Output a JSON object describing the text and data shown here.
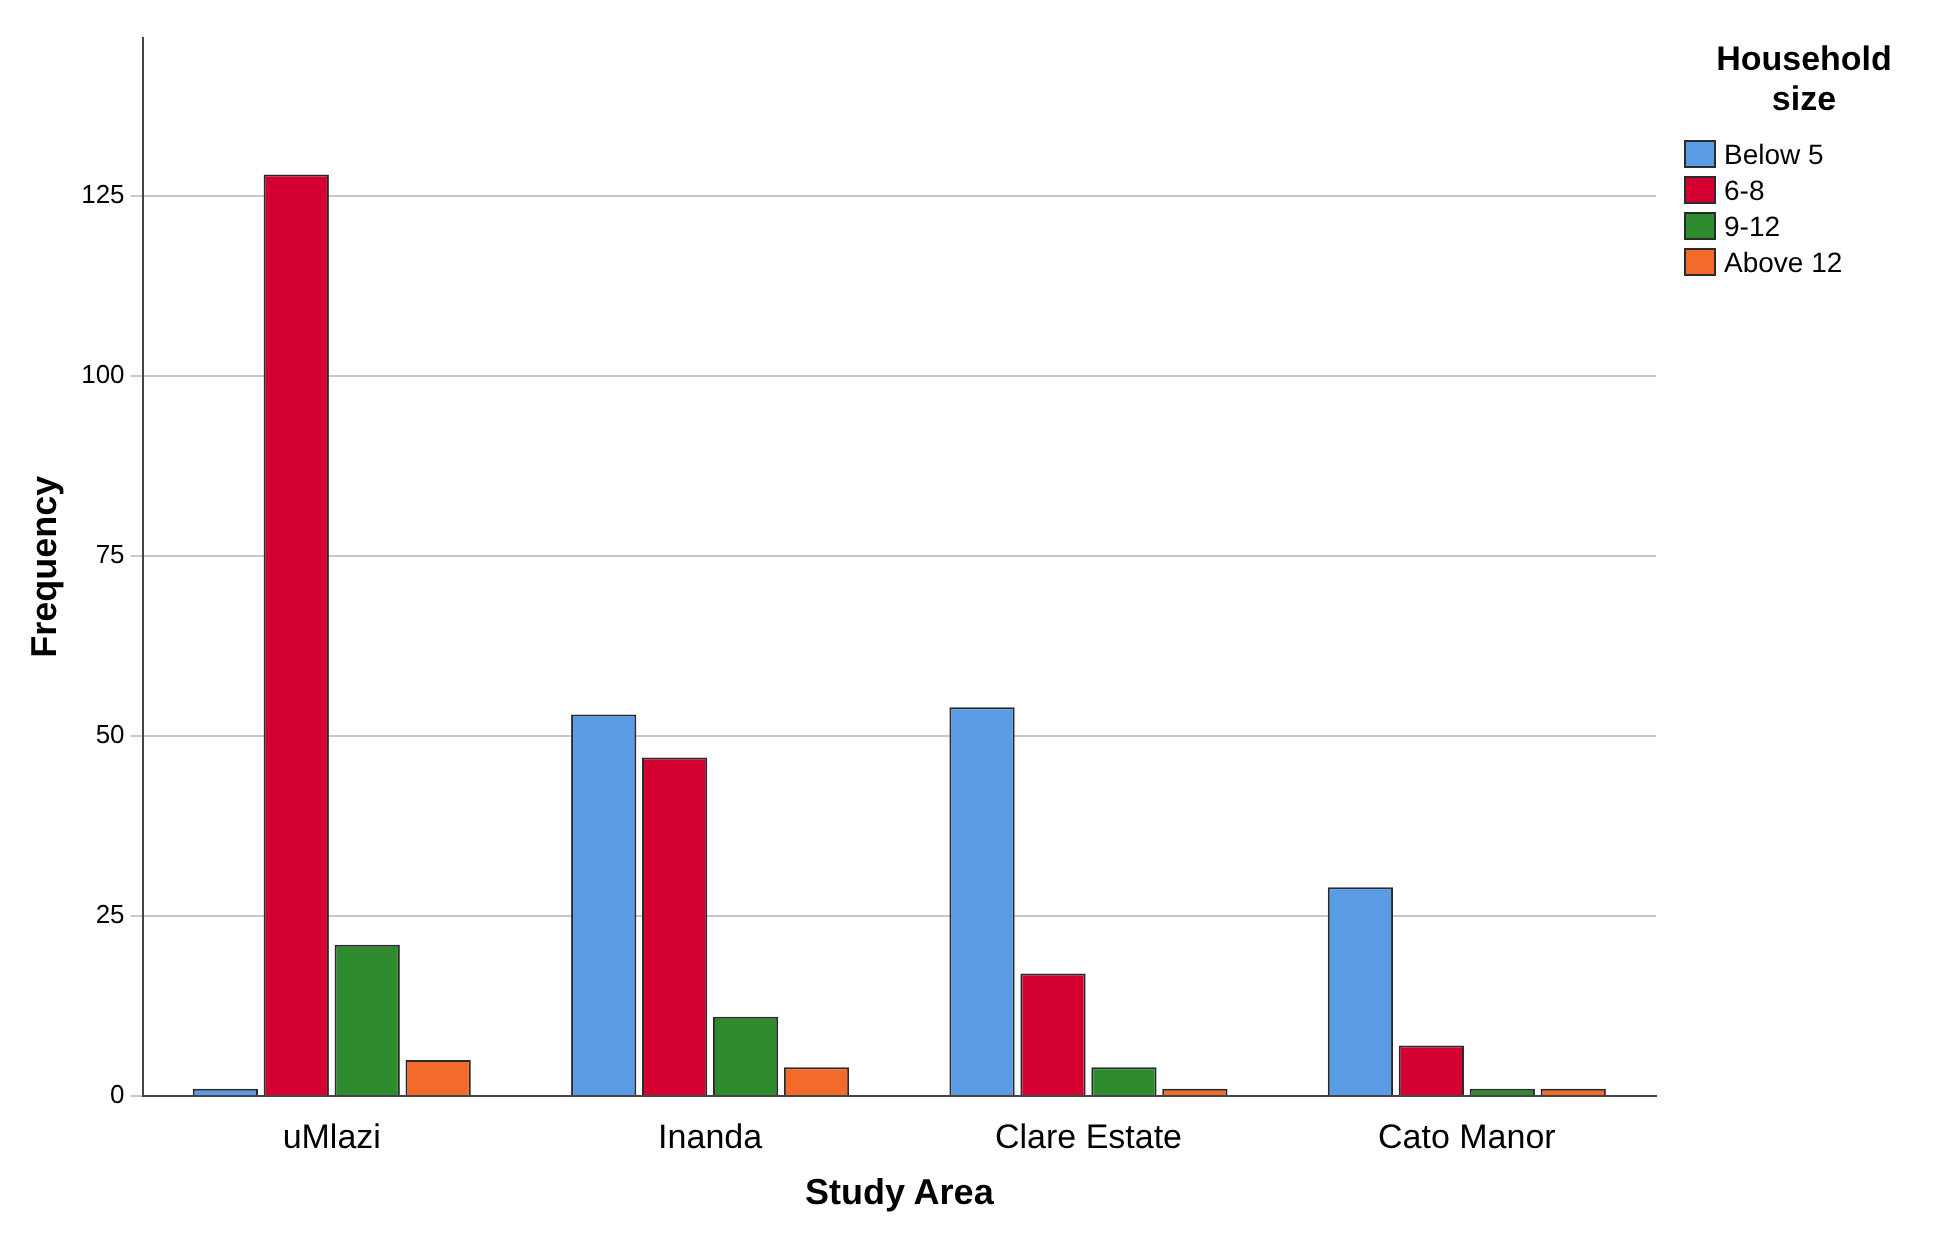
{
  "chart_data": {
    "type": "bar",
    "xlabel": "Study Area",
    "ylabel": "Frequency",
    "legend_title": "Household size",
    "categories": [
      "uMlazi",
      "Inanda",
      "Clare Estate",
      "Cato Manor"
    ],
    "series": [
      {
        "name": "Below 5",
        "color": "#5a9be6",
        "values": [
          1,
          53,
          54,
          29
        ]
      },
      {
        "name": "6-8",
        "color": "#d50032",
        "values": [
          128,
          47,
          17,
          7
        ]
      },
      {
        "name": "9-12",
        "color": "#2e8b2e",
        "values": [
          21,
          11,
          4,
          1
        ]
      },
      {
        "name": "Above 12",
        "color": "#f26b2b",
        "values": [
          5,
          4,
          1,
          1
        ]
      }
    ],
    "ylim": [
      0,
      147
    ],
    "yticks": [
      0,
      25,
      50,
      75,
      100,
      125
    ],
    "grid": "y",
    "legend": "top right"
  }
}
